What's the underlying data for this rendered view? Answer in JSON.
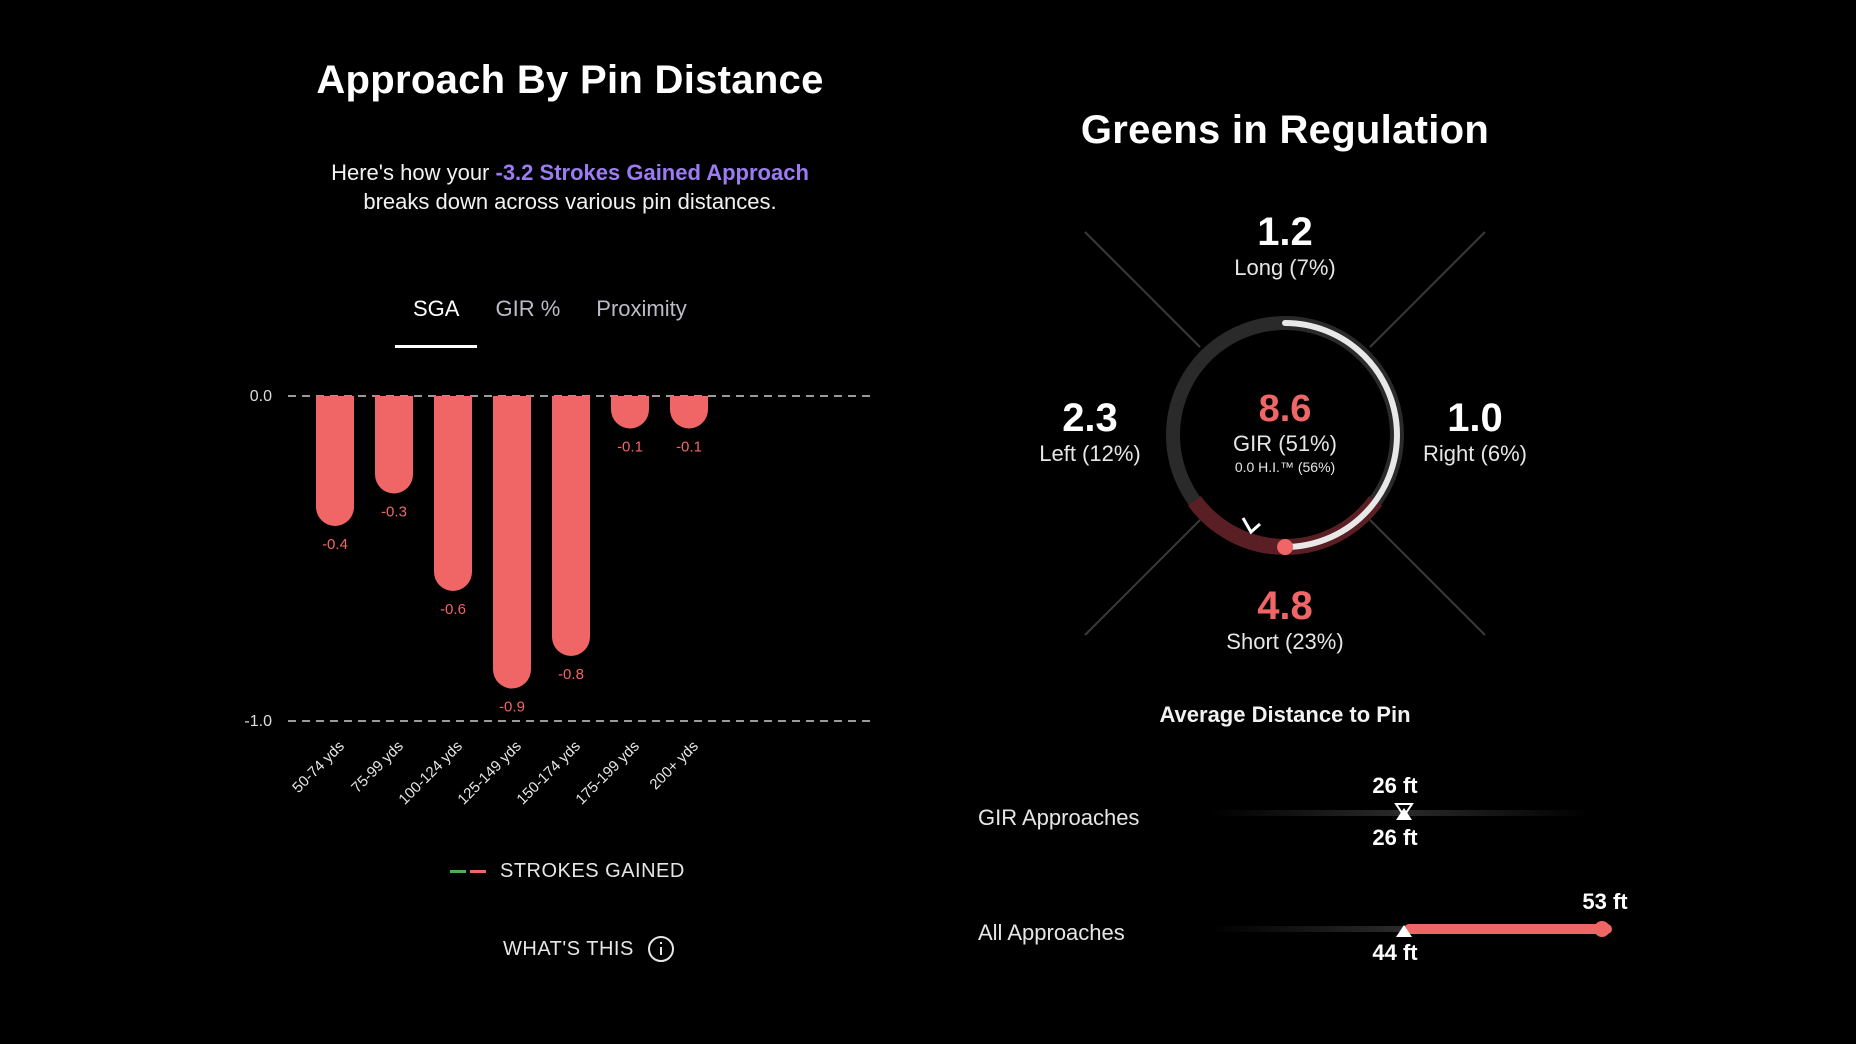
{
  "left_panel": {
    "title": "Approach By Pin Distance",
    "subtitle_prefix": "Here's how your ",
    "subtitle_highlight": "-3.2 Strokes Gained Approach",
    "subtitle_suffix": "breaks down across various pin distances.",
    "tabs": [
      {
        "label": "SGA",
        "active": true
      },
      {
        "label": "GIR %",
        "active": false
      },
      {
        "label": "Proximity",
        "active": false
      }
    ],
    "legend_label": "STROKES GAINED",
    "whats_this_label": "WHAT'S THIS",
    "colors": {
      "bar": "#f06666",
      "highlight": "#9b7cf2",
      "legend_positive": "#4caf50"
    }
  },
  "chart_data": {
    "type": "bar",
    "categories": [
      "50-74 yds",
      "75-99 yds",
      "100-124 yds",
      "125-149 yds",
      "150-174 yds",
      "175-199 yds",
      "200+ yds"
    ],
    "values": [
      -0.4,
      -0.3,
      -0.6,
      -0.9,
      -0.8,
      -0.1,
      -0.1
    ],
    "value_labels": [
      "-0.4",
      "-0.3",
      "-0.6",
      "-0.9",
      "-0.8",
      "-0.1",
      "-0.1"
    ],
    "ylim": [
      -1.0,
      0.0
    ],
    "y_ticks": [
      "0.0",
      "-1.0"
    ],
    "grid": "dashed at 0.0 and -1.0",
    "legend": "bottom-center"
  },
  "right_panel": {
    "title": "Greens in Regulation",
    "long": {
      "value": "1.2",
      "label": "Long (7%)"
    },
    "left": {
      "value": "2.3",
      "label": "Left (12%)"
    },
    "right": {
      "value": "1.0",
      "label": "Right (6%)"
    },
    "short": {
      "value": "4.8",
      "label": "Short (23%)"
    },
    "center": {
      "value": "8.6",
      "label": "GIR (51%)",
      "sub": "0.0 H.I.™ (56%)"
    },
    "gir_fraction": 0.51,
    "avg_distance": {
      "title": "Average Distance to Pin",
      "gir": {
        "label": "GIR Approaches",
        "top": "26 ft",
        "bottom": "26 ft"
      },
      "all": {
        "label": "All Approaches",
        "top": "53 ft",
        "bottom": "44 ft"
      }
    },
    "colors": {
      "accent": "#f06666"
    }
  }
}
